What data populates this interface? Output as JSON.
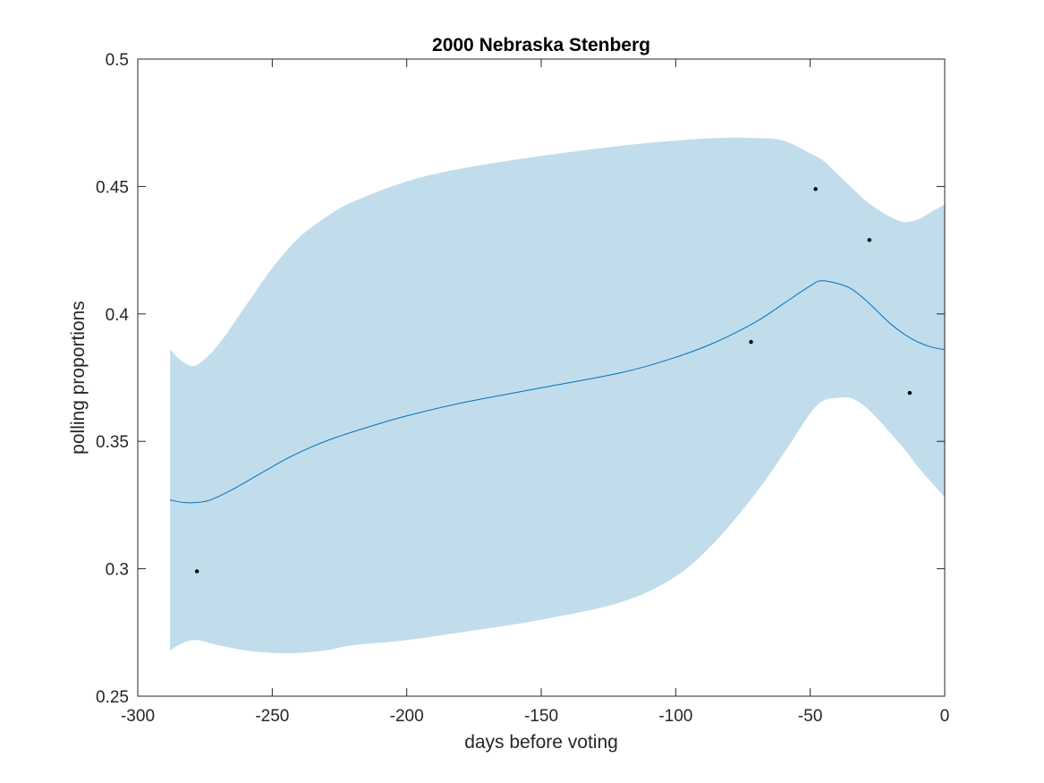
{
  "chart_data": {
    "type": "line",
    "title": "2000 Nebraska Stenberg",
    "xlabel": "days before voting",
    "ylabel": "polling proportions",
    "xlim": [
      -300,
      0
    ],
    "ylim": [
      0.25,
      0.5
    ],
    "xticks": [
      -300,
      -250,
      -200,
      -150,
      -100,
      -50,
      0
    ],
    "xtick_labels": [
      "-300",
      "-250",
      "-200",
      "-150",
      "-100",
      "-50",
      "0"
    ],
    "yticks": [
      0.25,
      0.3,
      0.35,
      0.4,
      0.45,
      0.5
    ],
    "ytick_labels": [
      "0.25",
      "0.3",
      "0.35",
      "0.4",
      "0.45",
      "0.5"
    ],
    "grid": false,
    "colors": {
      "band": "#c1ddeb",
      "line": "#0072bd",
      "points": "#000000",
      "axes": "#262626"
    },
    "band": {
      "x": [
        -288,
        -283,
        -278,
        -270,
        -260,
        -250,
        -240,
        -230,
        -220,
        -200,
        -180,
        -150,
        -120,
        -100,
        -85,
        -70,
        -60,
        -50,
        -45,
        -40,
        -35,
        -30,
        -25,
        -20,
        -15,
        -10,
        -5,
        0
      ],
      "upper": [
        0.386,
        0.381,
        0.38,
        0.388,
        0.403,
        0.418,
        0.43,
        0.438,
        0.444,
        0.452,
        0.457,
        0.462,
        0.466,
        0.468,
        0.469,
        0.469,
        0.468,
        0.463,
        0.46,
        0.455,
        0.45,
        0.445,
        0.441,
        0.438,
        0.436,
        0.437,
        0.44,
        0.443
      ],
      "lower": [
        0.268,
        0.271,
        0.272,
        0.27,
        0.268,
        0.267,
        0.267,
        0.268,
        0.27,
        0.272,
        0.275,
        0.28,
        0.287,
        0.297,
        0.311,
        0.33,
        0.345,
        0.361,
        0.366,
        0.367,
        0.367,
        0.364,
        0.359,
        0.353,
        0.347,
        0.34,
        0.334,
        0.328
      ]
    },
    "series": [
      {
        "x": [
          -288,
          -283,
          -278,
          -273,
          -265,
          -255,
          -245,
          -235,
          -225,
          -210,
          -200,
          -180,
          -150,
          -120,
          -100,
          -85,
          -70,
          -60,
          -50,
          -46,
          -40,
          -35,
          -30,
          -25,
          -20,
          -15,
          -10,
          -5,
          0
        ],
        "y": [
          0.327,
          0.326,
          0.326,
          0.327,
          0.331,
          0.337,
          0.343,
          0.348,
          0.352,
          0.357,
          0.36,
          0.365,
          0.371,
          0.377,
          0.383,
          0.389,
          0.397,
          0.404,
          0.411,
          0.413,
          0.412,
          0.41,
          0.406,
          0.401,
          0.396,
          0.392,
          0.389,
          0.387,
          0.386
        ]
      }
    ],
    "points": {
      "x": [
        -278,
        -72,
        -48,
        -28,
        -13
      ],
      "y": [
        0.299,
        0.389,
        0.449,
        0.429,
        0.369
      ]
    }
  }
}
